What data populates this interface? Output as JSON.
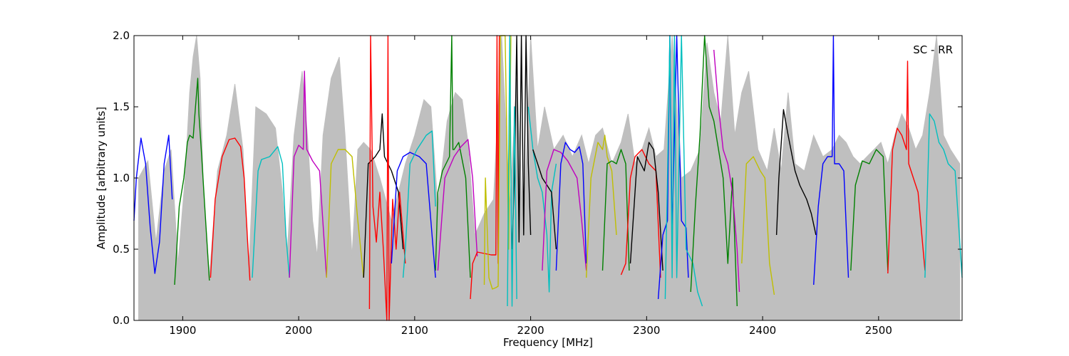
{
  "chart_data": {
    "type": "line",
    "xlabel": "Frequency [MHz]",
    "ylabel": "Amplitude [arbitrary units]",
    "annotation": "SC - RR",
    "annotation_placement": "top-right",
    "xlim": [
      1858,
      2572
    ],
    "ylim": [
      0.0,
      2.0
    ],
    "x_ticks": [
      1900,
      2000,
      2100,
      2200,
      2300,
      2400,
      2500
    ],
    "x_tick_labels": [
      "1900",
      "2000",
      "2100",
      "2200",
      "2300",
      "2400",
      "2500"
    ],
    "y_ticks": [
      0.0,
      0.5,
      1.0,
      1.5,
      2.0
    ],
    "y_tick_labels": [
      "0.0",
      "0.5",
      "1.0",
      "1.5",
      "2.0"
    ],
    "grid": false,
    "legend": false,
    "colors": {
      "envelope": "#bfbfbf",
      "axes": "#000000"
    },
    "envelope": {
      "x": [
        1862,
        1870,
        1877,
        1884,
        1890,
        1896,
        1902,
        1906,
        1909,
        1912,
        1915,
        1918,
        1923,
        1930,
        1938,
        1945,
        1952,
        1957,
        1963,
        1972,
        1980,
        1986,
        1990,
        1996,
        2003,
        2008,
        2012,
        2016,
        2021,
        2028,
        2035,
        2040,
        2046,
        2051,
        2056,
        2062,
        2070,
        2080,
        2092,
        2100,
        2108,
        2114,
        2120,
        2128,
        2135,
        2141,
        2146,
        2152,
        2160,
        2168,
        2175,
        2182,
        2188,
        2194,
        2200,
        2206,
        2212,
        2220,
        2228,
        2236,
        2244,
        2250,
        2256,
        2262,
        2270,
        2278,
        2284,
        2290,
        2296,
        2302,
        2308,
        2315,
        2322,
        2330,
        2338,
        2346,
        2352,
        2358,
        2364,
        2370,
        2376,
        2382,
        2388,
        2396,
        2404,
        2410,
        2416,
        2422,
        2428,
        2436,
        2444,
        2452,
        2460,
        2466,
        2472,
        2478,
        2484,
        2490,
        2496,
        2502,
        2508,
        2514,
        2520,
        2526,
        2532,
        2538,
        2544,
        2550,
        2556,
        2562,
        2570
      ],
      "y": [
        1.0,
        1.12,
        0.55,
        1.05,
        1.2,
        0.4,
        1.0,
        1.6,
        1.85,
        2.0,
        1.7,
        0.9,
        0.3,
        1.05,
        1.3,
        1.66,
        1.2,
        0.35,
        1.5,
        1.45,
        1.35,
        0.9,
        0.45,
        1.3,
        1.75,
        1.25,
        0.7,
        0.45,
        1.3,
        1.7,
        1.85,
        1.3,
        0.45,
        1.2,
        1.25,
        1.2,
        1.0,
        0.7,
        1.1,
        1.3,
        1.55,
        1.5,
        0.8,
        1.4,
        1.6,
        1.55,
        1.25,
        0.6,
        0.75,
        0.85,
        2.0,
        0.8,
        1.7,
        0.6,
        2.0,
        1.2,
        1.5,
        1.2,
        1.3,
        1.15,
        1.3,
        1.1,
        1.3,
        1.35,
        1.1,
        1.25,
        1.45,
        1.1,
        1.2,
        1.35,
        1.15,
        1.2,
        2.0,
        1.0,
        1.05,
        1.2,
        1.95,
        1.6,
        1.4,
        2.0,
        1.3,
        1.6,
        1.75,
        1.2,
        1.05,
        1.35,
        1.05,
        1.6,
        1.1,
        1.05,
        1.3,
        1.15,
        1.2,
        1.3,
        1.25,
        1.15,
        1.1,
        1.15,
        1.2,
        1.25,
        1.1,
        1.3,
        1.45,
        1.35,
        1.2,
        1.3,
        1.6,
        2.0,
        1.3,
        1.2,
        1.1
      ]
    },
    "series": [
      {
        "color": "#0000ff",
        "x": [
          1858,
          1860,
          1864,
          1868,
          1872,
          1876,
          1880,
          1884,
          1888,
          1891
        ],
        "y": [
          0.7,
          1.0,
          1.28,
          1.1,
          0.65,
          0.33,
          0.55,
          1.1,
          1.3,
          0.85
        ]
      },
      {
        "color": "#008000",
        "x": [
          1893,
          1897,
          1901,
          1904,
          1906,
          1909,
          1911,
          1913,
          1914,
          1916,
          1919,
          1923
        ],
        "y": [
          0.25,
          0.8,
          1.0,
          1.25,
          1.3,
          1.28,
          1.5,
          1.7,
          1.45,
          1.2,
          0.8,
          0.28
        ]
      },
      {
        "color": "#ff0000",
        "x": [
          1924,
          1928,
          1934,
          1940,
          1945,
          1950,
          1953,
          1956,
          1958
        ],
        "y": [
          0.3,
          0.85,
          1.15,
          1.27,
          1.28,
          1.22,
          1.0,
          0.55,
          0.28
        ]
      },
      {
        "color": "#00bfbf",
        "x": [
          1960,
          1965,
          1968,
          1975,
          1982,
          1986,
          1989,
          1992
        ],
        "y": [
          0.3,
          1.05,
          1.13,
          1.15,
          1.22,
          1.1,
          0.6,
          0.3
        ]
      },
      {
        "color": "#bf00bf",
        "x": [
          1992,
          1996,
          2000,
          2004,
          2005,
          2007,
          2012,
          2018,
          2024
        ],
        "y": [
          0.3,
          1.15,
          1.23,
          1.2,
          1.75,
          1.2,
          1.12,
          1.05,
          0.3
        ]
      },
      {
        "color": "#bfbf00",
        "x": [
          2024,
          2028,
          2034,
          2040,
          2046,
          2051,
          2056
        ],
        "y": [
          0.3,
          1.1,
          1.2,
          1.2,
          1.15,
          0.7,
          0.3
        ]
      },
      {
        "color": "#000000",
        "x": [
          2056,
          2060,
          2066,
          2070,
          2072,
          2074,
          2080,
          2086,
          2090
        ],
        "y": [
          0.3,
          1.1,
          1.15,
          1.2,
          1.45,
          1.15,
          1.05,
          0.9,
          0.5
        ]
      },
      {
        "color": "#ff0000",
        "x": [
          2061,
          2062,
          2064,
          2067,
          2070,
          2073,
          2076,
          2077,
          2078,
          2081,
          2084,
          2087,
          2090,
          2092
        ],
        "y": [
          0.08,
          2.0,
          0.8,
          0.55,
          0.9,
          0.5,
          0.0,
          2.0,
          0.0,
          0.85,
          0.5,
          0.9,
          0.6,
          0.4
        ]
      },
      {
        "color": "#0000ff",
        "x": [
          2080,
          2085,
          2090,
          2096,
          2104,
          2110,
          2114,
          2118
        ],
        "y": [
          0.4,
          1.05,
          1.15,
          1.18,
          1.15,
          1.1,
          0.7,
          0.3
        ]
      },
      {
        "color": "#00bfbf",
        "x": [
          2090,
          2092,
          2096,
          2102,
          2110,
          2115,
          2118
        ],
        "y": [
          0.3,
          0.5,
          1.1,
          1.2,
          1.3,
          1.33,
          0.8
        ]
      },
      {
        "color": "#008000",
        "x": [
          2118,
          2120,
          2124,
          2130,
          2132,
          2133,
          2134,
          2138,
          2144,
          2148
        ],
        "y": [
          0.35,
          0.9,
          1.05,
          1.15,
          2.0,
          1.2,
          1.2,
          1.25,
          1.0,
          0.3
        ]
      },
      {
        "color": "#bf00bf",
        "x": [
          2120,
          2126,
          2134,
          2140,
          2146,
          2150,
          2154
        ],
        "y": [
          0.35,
          1.0,
          1.15,
          1.22,
          1.27,
          1.0,
          0.45
        ]
      },
      {
        "color": "#ff0000",
        "x": [
          2148,
          2150,
          2154,
          2160,
          2166,
          2170,
          2171,
          2172,
          2173
        ],
        "y": [
          0.15,
          0.4,
          0.48,
          0.47,
          0.46,
          0.46,
          2.0,
          0.4,
          2.0
        ]
      },
      {
        "color": "#bfbf00",
        "x": [
          2160,
          2161,
          2164,
          2167,
          2170,
          2172,
          2174,
          2178,
          2181,
          2183
        ],
        "y": [
          0.25,
          1.0,
          0.3,
          0.22,
          0.23,
          0.24,
          2.0,
          2.0,
          0.5,
          2.0
        ]
      },
      {
        "color": "#000000",
        "x": [
          2184,
          2186,
          2188,
          2190,
          2192,
          2194,
          2196,
          2198,
          2200
        ],
        "y": [
          0.5,
          1.0,
          2.0,
          0.55,
          2.0,
          0.6,
          2.0,
          1.1,
          0.6
        ]
      },
      {
        "color": "#00bfbf",
        "x": [
          2180,
          2182,
          2184,
          2186,
          2188
        ],
        "y": [
          0.1,
          2.0,
          0.1,
          1.5,
          0.15
        ]
      },
      {
        "color": "#00bfbf",
        "x": [
          2198,
          2202,
          2206,
          2210,
          2214,
          2216,
          2218,
          2222
        ],
        "y": [
          1.5,
          1.2,
          1.0,
          0.9,
          0.6,
          0.2,
          0.9,
          1.1
        ]
      },
      {
        "color": "#000000",
        "x": [
          2202,
          2206,
          2210,
          2214,
          2218,
          2222
        ],
        "y": [
          1.2,
          1.1,
          1.0,
          0.95,
          0.9,
          0.5
        ]
      },
      {
        "color": "#bf00bf",
        "x": [
          2210,
          2214,
          2220,
          2226,
          2232,
          2240,
          2244,
          2248
        ],
        "y": [
          0.35,
          1.05,
          1.2,
          1.18,
          1.12,
          1.0,
          0.7,
          0.35
        ]
      },
      {
        "color": "#0000ff",
        "x": [
          2222,
          2226,
          2230,
          2234,
          2238,
          2242,
          2245,
          2248
        ],
        "y": [
          0.35,
          1.1,
          1.25,
          1.2,
          1.18,
          1.22,
          1.1,
          0.4
        ]
      },
      {
        "color": "#bfbf00",
        "x": [
          2248,
          2252,
          2258,
          2262,
          2264,
          2266,
          2270,
          2274
        ],
        "y": [
          0.3,
          1.0,
          1.25,
          1.2,
          1.3,
          1.15,
          1.05,
          0.6
        ]
      },
      {
        "color": "#008000",
        "x": [
          2262,
          2266,
          2270,
          2274,
          2278,
          2282,
          2285
        ],
        "y": [
          0.35,
          1.1,
          1.12,
          1.1,
          1.2,
          1.1,
          0.35
        ]
      },
      {
        "color": "#ff0000",
        "x": [
          2278,
          2282,
          2286,
          2290,
          2296,
          2302,
          2308,
          2312
        ],
        "y": [
          0.32,
          0.4,
          1.0,
          1.15,
          1.2,
          1.1,
          1.05,
          0.3
        ]
      },
      {
        "color": "#000000",
        "x": [
          2286,
          2292,
          2298,
          2302,
          2306,
          2310,
          2314
        ],
        "y": [
          0.4,
          1.15,
          1.05,
          1.25,
          1.2,
          0.9,
          0.35
        ]
      },
      {
        "color": "#0000ff",
        "x": [
          2310,
          2314,
          2318,
          2320,
          2322,
          2326,
          2330,
          2334,
          2336
        ],
        "y": [
          0.15,
          0.6,
          0.7,
          2.0,
          0.6,
          2.0,
          0.7,
          0.65,
          0.3
        ]
      },
      {
        "color": "#00bfbf",
        "x": [
          2316,
          2318,
          2320,
          2322,
          2324,
          2326,
          2330,
          2334,
          2340,
          2344,
          2348
        ],
        "y": [
          0.15,
          1.0,
          2.0,
          0.3,
          2.0,
          0.3,
          2.0,
          0.5,
          0.4,
          0.2,
          0.1
        ]
      },
      {
        "color": "#008000",
        "x": [
          2338,
          2342,
          2346,
          2350,
          2354,
          2358,
          2362,
          2366,
          2370,
          2374,
          2378
        ],
        "y": [
          0.2,
          0.8,
          1.3,
          2.0,
          1.5,
          1.4,
          1.2,
          1.0,
          0.4,
          1.0,
          0.1
        ]
      },
      {
        "color": "#bf00bf",
        "x": [
          2358,
          2362,
          2366,
          2370,
          2374,
          2378,
          2380
        ],
        "y": [
          1.9,
          1.5,
          1.2,
          1.1,
          0.9,
          0.5,
          0.2
        ]
      },
      {
        "color": "#bfbf00",
        "x": [
          2382,
          2386,
          2392,
          2398,
          2402,
          2406,
          2410
        ],
        "y": [
          0.4,
          1.1,
          1.15,
          1.05,
          1.0,
          0.4,
          0.18
        ]
      },
      {
        "color": "#000000",
        "x": [
          2412,
          2414,
          2418,
          2422,
          2428,
          2432,
          2438,
          2442,
          2446
        ],
        "y": [
          0.6,
          1.0,
          1.48,
          1.3,
          1.05,
          0.95,
          0.85,
          0.75,
          0.6
        ]
      },
      {
        "color": "#0000ff",
        "x": [
          2444,
          2448,
          2452,
          2456,
          2460,
          2461,
          2462,
          2466,
          2470,
          2474
        ],
        "y": [
          0.25,
          0.8,
          1.1,
          1.15,
          1.15,
          2.0,
          1.1,
          1.1,
          1.05,
          0.3
        ]
      },
      {
        "color": "#008000",
        "x": [
          2476,
          2480,
          2486,
          2492,
          2498,
          2504,
          2508
        ],
        "y": [
          0.35,
          0.95,
          1.12,
          1.1,
          1.2,
          1.15,
          0.35
        ]
      },
      {
        "color": "#ff0000",
        "x": [
          2508,
          2512,
          2516,
          2520,
          2524,
          2525,
          2526,
          2530,
          2534,
          2540
        ],
        "y": [
          0.33,
          1.2,
          1.35,
          1.3,
          1.2,
          1.82,
          1.1,
          1.0,
          0.9,
          0.35
        ]
      },
      {
        "color": "#00bfbf",
        "x": [
          2540,
          2544,
          2548,
          2552,
          2556,
          2560,
          2566,
          2572
        ],
        "y": [
          0.3,
          1.45,
          1.4,
          1.25,
          1.2,
          1.1,
          1.05,
          0.3
        ]
      }
    ]
  }
}
